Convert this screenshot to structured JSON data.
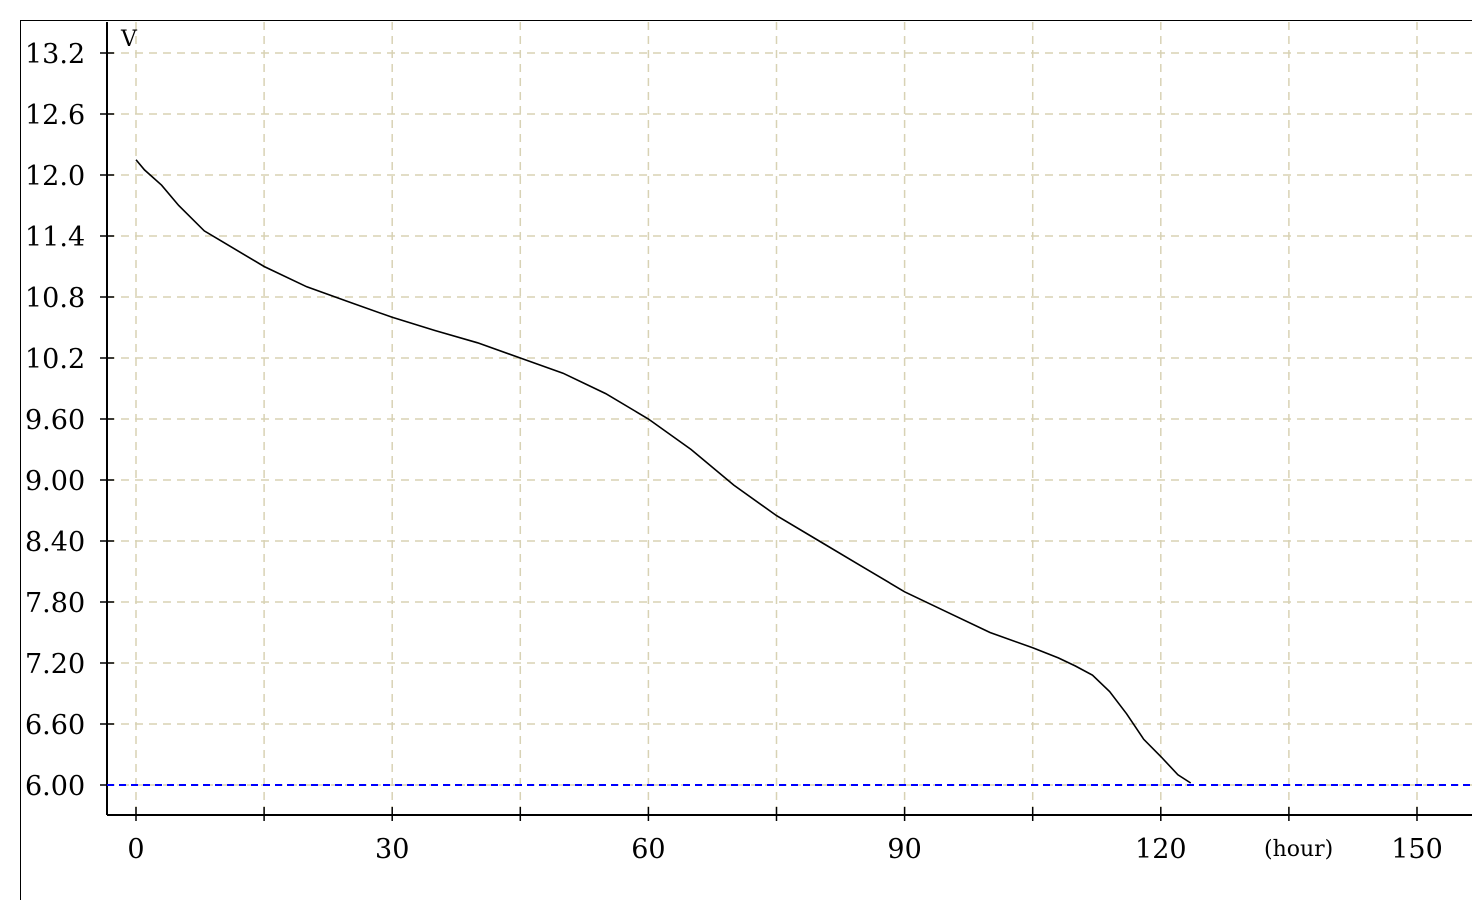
{
  "chart_data": {
    "type": "line",
    "title": "",
    "ylabel": "V",
    "xlabel": "(hour)",
    "xlim": [
      0,
      150
    ],
    "ylim": [
      6.0,
      13.2
    ],
    "x_ticks": [
      0,
      30,
      60,
      90,
      120,
      150
    ],
    "x_tick_labels": [
      "0",
      "30",
      "60",
      "90",
      "120",
      "150"
    ],
    "y_ticks": [
      13.2,
      12.6,
      12.0,
      11.4,
      10.8,
      10.2,
      9.6,
      9.0,
      8.4,
      7.8,
      7.2,
      6.6,
      6.0
    ],
    "y_tick_labels": [
      "13.2",
      "12.6",
      "12.0",
      "11.4",
      "10.8",
      "10.2",
      "9.60",
      "9.00",
      "8.40",
      "7.80",
      "7.20",
      "6.60",
      "6.00"
    ],
    "grid": true,
    "colors": {
      "grid": "#d8d2b4",
      "series": "#000000",
      "cutoff": "#0000ff"
    },
    "cutoff_voltage": 6.0,
    "series": [
      {
        "x": [
          0,
          1,
          3,
          5,
          8,
          10,
          15,
          20,
          25,
          30,
          35,
          40,
          45,
          50,
          55,
          60,
          65,
          70,
          75,
          80,
          85,
          90,
          95,
          100,
          105,
          108,
          110,
          112,
          114,
          116,
          118,
          120,
          122,
          123.5
        ],
        "y": [
          12.15,
          12.05,
          11.9,
          11.7,
          11.45,
          11.35,
          11.1,
          10.9,
          10.75,
          10.6,
          10.47,
          10.35,
          10.2,
          10.05,
          9.85,
          9.6,
          9.3,
          8.95,
          8.65,
          8.4,
          8.15,
          7.9,
          7.7,
          7.5,
          7.35,
          7.25,
          7.17,
          7.08,
          6.92,
          6.7,
          6.45,
          6.28,
          6.1,
          6.02
        ]
      }
    ]
  }
}
